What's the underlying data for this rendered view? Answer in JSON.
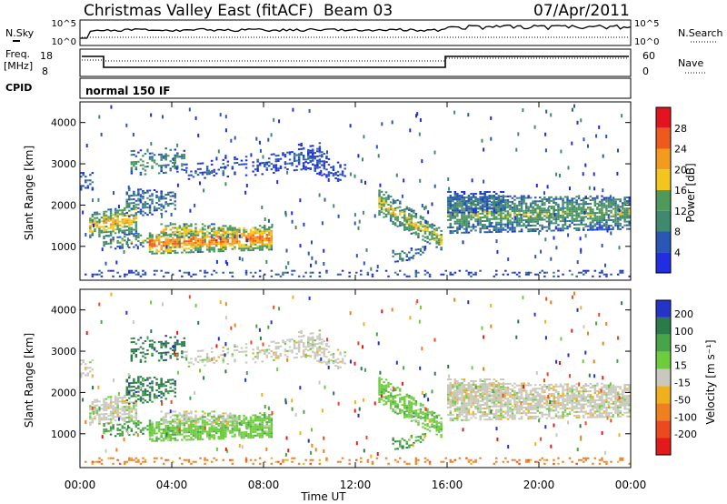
{
  "header": {
    "title": "Christmas Valley East (fitACF)",
    "beam": "Beam 03",
    "date": "07/Apr/2011"
  },
  "noise_panel": {
    "left_label": "N.Sky",
    "right_label": "N.Search",
    "left_ticks": [
      "10^5",
      "10^0"
    ],
    "right_ticks": [
      "10^5",
      "10^0"
    ]
  },
  "freq_panel": {
    "left_label_1": "Freq.",
    "left_label_2": "[MHz]",
    "left_ticks": [
      "18",
      "8"
    ],
    "right_label": "Nave",
    "right_ticks": [
      "60",
      "0"
    ]
  },
  "cpid_panel": {
    "label": "CPID",
    "text": "normal 150 IF"
  },
  "colors": {
    "power_scale": [
      "#1e2ee0",
      "#2a56b4",
      "#3f8a6e",
      "#4f9a58",
      "#f2c61c",
      "#f39b1e",
      "#ee5a1e",
      "#e4141e"
    ],
    "velocity_scale": [
      "#2433c8",
      "#2b7a4a",
      "#46a548",
      "#6dcc3c",
      "#c8c8be",
      "#f0b01e",
      "#f0801e",
      "#ec4a1e",
      "#e41a1a"
    ]
  },
  "chart_data": [
    {
      "type": "heatmap",
      "panel": "power",
      "ylabel": "Slant Range [km]",
      "yticks": [
        "1000",
        "2000",
        "3000",
        "4000"
      ],
      "ylim": [
        180,
        4500
      ],
      "xlim": [
        0,
        24
      ],
      "colorbar_label": "Power [dB]",
      "colorbar_ticks": [
        "4",
        "8",
        "12",
        "16",
        "20",
        "24",
        "28"
      ],
      "colorbar_range": [
        0,
        32
      ]
    },
    {
      "type": "heatmap",
      "panel": "velocity",
      "ylabel": "Slant Range [km]",
      "yticks": [
        "1000",
        "2000",
        "3000",
        "4000"
      ],
      "ylim": [
        180,
        4500
      ],
      "xlim": [
        0,
        24
      ],
      "colorbar_label": "Velocity [m s⁻¹]",
      "colorbar_ticks": [
        "200",
        "100",
        "50",
        "15",
        "-15",
        "-50",
        "-100",
        "-200"
      ]
    }
  ],
  "xaxis": {
    "label": "Time UT",
    "ticks": [
      "00:00",
      "04:00",
      "08:00",
      "12:00",
      "16:00",
      "20:00",
      "00:00"
    ]
  }
}
